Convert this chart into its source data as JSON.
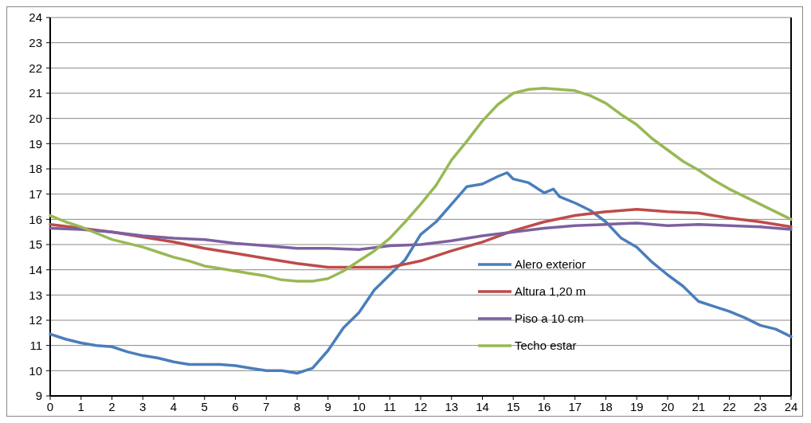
{
  "chart_data": {
    "type": "line",
    "xlim": [
      0,
      24
    ],
    "xticks": [
      0,
      1,
      2,
      3,
      4,
      5,
      6,
      7,
      8,
      9,
      10,
      11,
      12,
      13,
      14,
      15,
      16,
      17,
      18,
      19,
      20,
      21,
      22,
      23,
      24
    ],
    "ylim": [
      9,
      24
    ],
    "yticks": [
      9,
      10,
      11,
      12,
      13,
      14,
      15,
      16,
      17,
      18,
      19,
      20,
      21,
      22,
      23,
      24
    ],
    "grid": "y",
    "legend": "right",
    "marker": "none",
    "line_style": "solid",
    "series": [
      {
        "name": "Alero exterior",
        "color": "#4a7ebb",
        "x": [
          0,
          0.5,
          1,
          1.5,
          2,
          2.5,
          3,
          3.5,
          4,
          4.5,
          5,
          5.5,
          6,
          6.5,
          7,
          7.5,
          8,
          8.5,
          9,
          9.5,
          10,
          10.5,
          11,
          11.5,
          12,
          12.5,
          13,
          13.5,
          14,
          14.5,
          14.8,
          15,
          15.5,
          16,
          16.3,
          16.5,
          17,
          17.5,
          18,
          18.5,
          19,
          19.5,
          20,
          20.5,
          21,
          21.5,
          22,
          22.5,
          23,
          23.5,
          24
        ],
        "values": [
          11.45,
          11.25,
          11.1,
          11.0,
          10.95,
          10.75,
          10.6,
          10.5,
          10.35,
          10.25,
          10.25,
          10.25,
          10.2,
          10.1,
          10.0,
          10.0,
          9.9,
          10.1,
          10.8,
          11.7,
          12.3,
          13.2,
          13.8,
          14.4,
          15.4,
          15.9,
          16.6,
          17.3,
          17.4,
          17.7,
          17.85,
          17.6,
          17.45,
          17.05,
          17.2,
          16.9,
          16.65,
          16.35,
          15.9,
          15.25,
          14.9,
          14.3,
          13.8,
          13.35,
          12.75,
          12.55,
          12.35,
          12.1,
          11.8,
          11.65,
          11.35
        ]
      },
      {
        "name": "Altura 1,20 m",
        "color": "#be4b48",
        "x": [
          0,
          1,
          2,
          3,
          4,
          5,
          6,
          7,
          8,
          9,
          10,
          11,
          12,
          13,
          14,
          15,
          16,
          17,
          18,
          19,
          20,
          21,
          22,
          23,
          24
        ],
        "values": [
          15.8,
          15.65,
          15.5,
          15.3,
          15.1,
          14.85,
          14.65,
          14.45,
          14.25,
          14.1,
          14.1,
          14.1,
          14.35,
          14.75,
          15.1,
          15.55,
          15.9,
          16.15,
          16.3,
          16.4,
          16.3,
          16.25,
          16.05,
          15.9,
          15.7
        ]
      },
      {
        "name": "Piso a  10 cm",
        "color": "#7d60a0",
        "x": [
          0,
          1,
          2,
          3,
          4,
          5,
          6,
          7,
          8,
          9,
          10,
          11,
          12,
          13,
          14,
          15,
          16,
          17,
          18,
          19,
          20,
          21,
          22,
          23,
          24
        ],
        "values": [
          15.65,
          15.6,
          15.5,
          15.35,
          15.25,
          15.2,
          15.05,
          14.95,
          14.85,
          14.85,
          14.8,
          14.95,
          15.0,
          15.15,
          15.35,
          15.5,
          15.65,
          15.75,
          15.8,
          15.85,
          15.75,
          15.8,
          15.75,
          15.7,
          15.6
        ]
      },
      {
        "name": "Techo estar",
        "color": "#98b954",
        "x": [
          0,
          0.5,
          1,
          1.5,
          2,
          2.5,
          3,
          3.5,
          4,
          4.5,
          5,
          5.5,
          6,
          6.5,
          7,
          7.5,
          8,
          8.5,
          9,
          9.5,
          10,
          10.5,
          11,
          11.5,
          12,
          12.5,
          13,
          13.5,
          14,
          14.5,
          15,
          15.5,
          16,
          16.5,
          17,
          17.5,
          18,
          18.5,
          19,
          19.5,
          20,
          20.5,
          21,
          21.5,
          22,
          22.5,
          23,
          23.5,
          24
        ],
        "values": [
          16.15,
          15.9,
          15.7,
          15.45,
          15.2,
          15.05,
          14.9,
          14.7,
          14.5,
          14.35,
          14.15,
          14.05,
          13.95,
          13.85,
          13.75,
          13.6,
          13.55,
          13.55,
          13.65,
          13.95,
          14.35,
          14.75,
          15.25,
          15.9,
          16.6,
          17.35,
          18.35,
          19.1,
          19.9,
          20.55,
          21.0,
          21.15,
          21.2,
          21.15,
          21.1,
          20.9,
          20.6,
          20.15,
          19.75,
          19.2,
          18.75,
          18.3,
          17.95,
          17.55,
          17.2,
          16.9,
          16.6,
          16.3,
          16.0
        ]
      }
    ]
  }
}
